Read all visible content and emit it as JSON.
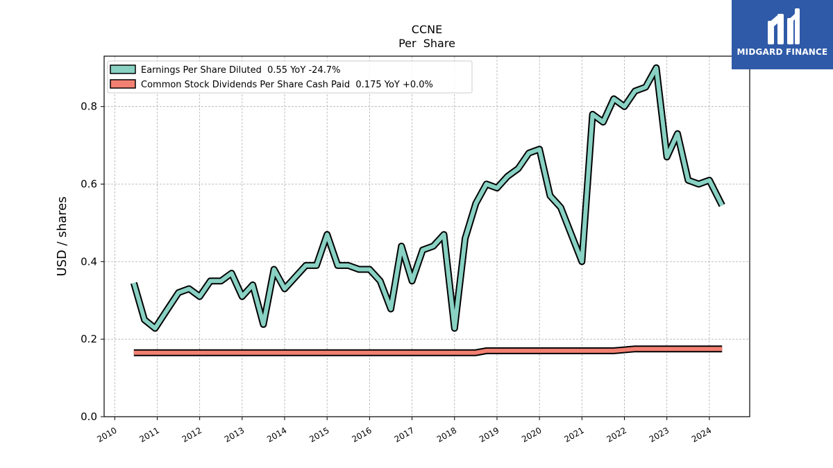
{
  "chart_data": {
    "type": "line",
    "title": "CCNE",
    "subtitle": "Per  Share",
    "ylabel": "USD / shares",
    "xlabel": "",
    "xlim": [
      2009.75,
      2024.95
    ],
    "ylim": [
      0.0,
      0.93
    ],
    "yticks": [
      0.0,
      0.2,
      0.4,
      0.6,
      0.8
    ],
    "ytick_labels": [
      "0.0",
      "0.2",
      "0.4",
      "0.6",
      "0.8"
    ],
    "xticks": [
      2010,
      2011,
      2012,
      2013,
      2014,
      2015,
      2016,
      2017,
      2018,
      2019,
      2020,
      2021,
      2022,
      2023,
      2024
    ],
    "xtick_labels": [
      "2010",
      "2011",
      "2012",
      "2013",
      "2014",
      "2015",
      "2016",
      "2017",
      "2018",
      "2019",
      "2020",
      "2021",
      "2022",
      "2023",
      "2024"
    ],
    "grid": true,
    "legend_position": "top-left",
    "series": [
      {
        "name": "Earnings Per Share Diluted  0.55 YoY -24.7%",
        "color": "#88d1c3",
        "x": [
          2010.45,
          2010.7,
          2010.95,
          2011.2,
          2011.5,
          2011.75,
          2012.0,
          2012.25,
          2012.5,
          2012.75,
          2013.0,
          2013.25,
          2013.5,
          2013.75,
          2014.0,
          2014.25,
          2014.5,
          2014.75,
          2015.0,
          2015.25,
          2015.5,
          2015.75,
          2016.0,
          2016.25,
          2016.5,
          2016.75,
          2017.0,
          2017.25,
          2017.5,
          2017.75,
          2018.0,
          2018.25,
          2018.5,
          2018.75,
          2019.0,
          2019.25,
          2019.5,
          2019.75,
          2020.0,
          2020.25,
          2020.5,
          2020.75,
          2021.0,
          2021.25,
          2021.5,
          2021.75,
          2022.0,
          2022.25,
          2022.5,
          2022.75,
          2023.0,
          2023.25,
          2023.5,
          2023.75,
          2024.0,
          2024.3
        ],
        "values": [
          0.345,
          0.25,
          0.228,
          0.27,
          0.32,
          0.33,
          0.31,
          0.35,
          0.35,
          0.37,
          0.31,
          0.34,
          0.238,
          0.38,
          0.33,
          0.36,
          0.39,
          0.39,
          0.47,
          0.39,
          0.39,
          0.38,
          0.38,
          0.35,
          0.278,
          0.44,
          0.35,
          0.43,
          0.44,
          0.47,
          0.228,
          0.46,
          0.55,
          0.6,
          0.59,
          0.62,
          0.64,
          0.68,
          0.69,
          0.57,
          0.54,
          0.47,
          0.4,
          0.78,
          0.76,
          0.82,
          0.8,
          0.84,
          0.85,
          0.9,
          0.67,
          0.73,
          0.61,
          0.6,
          0.61,
          0.545
        ]
      },
      {
        "name": "Common Stock Dividends Per Share Cash Paid  0.175 YoY +0.0%",
        "color": "#f28072",
        "x": [
          2010.45,
          2018.5,
          2018.75,
          2021.75,
          2022.25,
          2024.3
        ],
        "values": [
          0.165,
          0.165,
          0.17,
          0.17,
          0.175,
          0.175
        ]
      }
    ]
  },
  "logo": {
    "text": "MIDGARD FINANCE",
    "bg_color": "#2f5aa8",
    "icon": "midgard-m-logo-icon"
  }
}
